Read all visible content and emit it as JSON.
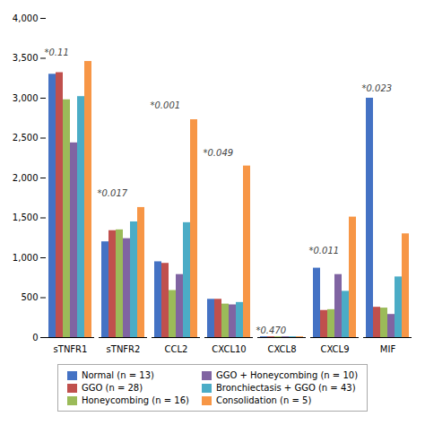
{
  "chart_data": {
    "type": "bar",
    "categories": [
      "sTNFR1",
      "sTNFR2",
      "CCL2",
      "CXCL10",
      "CXCL8",
      "CXCL9",
      "MIF"
    ],
    "series": [
      {
        "name": "Normal (n = 13)",
        "color": "#4472C4",
        "values": [
          3300,
          1200,
          950,
          480,
          10,
          870,
          3000
        ]
      },
      {
        "name": "GGO (n = 28)",
        "color": "#C0504D",
        "values": [
          3320,
          1340,
          930,
          480,
          10,
          340,
          380
        ]
      },
      {
        "name": "Honeycombing (n = 16)",
        "color": "#9BBB59",
        "values": [
          2980,
          1350,
          590,
          420,
          10,
          350,
          370
        ]
      },
      {
        "name": "GGO + Honeycombing (n = 10)",
        "color": "#8064A2",
        "values": [
          2440,
          1240,
          790,
          410,
          10,
          790,
          290
        ]
      },
      {
        "name": "Bronchiectasis + GGO (n = 43)",
        "color": "#4BACC6",
        "values": [
          3020,
          1450,
          1440,
          440,
          10,
          580,
          760
        ]
      },
      {
        "name": "Consolidation (n = 5)",
        "color": "#F79646",
        "values": [
          3460,
          1630,
          2730,
          2150,
          10,
          1510,
          1300
        ]
      }
    ],
    "ylim": [
      0,
      4000
    ],
    "yticks": [
      0,
      500,
      {
        "value": 1000,
        "label": "1,000"
      },
      {
        "value": 1500,
        "label": "1,500"
      },
      {
        "value": 2000,
        "label": "2,000"
      },
      {
        "value": 2500,
        "label": "2,500"
      },
      {
        "value": 3000,
        "label": "3,000"
      },
      {
        "value": 3500,
        "label": "3,500"
      },
      {
        "value": 4000,
        "label": "4,000"
      }
    ],
    "annotations": [
      {
        "text": "*0.11",
        "category": "sTNFR1",
        "y": 3530
      },
      {
        "text": "*0.017",
        "category": "sTNFR2",
        "y": 1770
      },
      {
        "text": "*0.001",
        "category": "CCL2",
        "y": 2870
      },
      {
        "text": "*0.049",
        "category": "CXCL10",
        "y": 2280
      },
      {
        "text": "*0.470",
        "category": "CXCL8",
        "y": 55
      },
      {
        "text": "*0.011",
        "category": "CXCL9",
        "y": 1050
      },
      {
        "text": "*0.023",
        "category": "MIF",
        "y": 3080
      }
    ],
    "legend": "bottom",
    "grid": false
  }
}
